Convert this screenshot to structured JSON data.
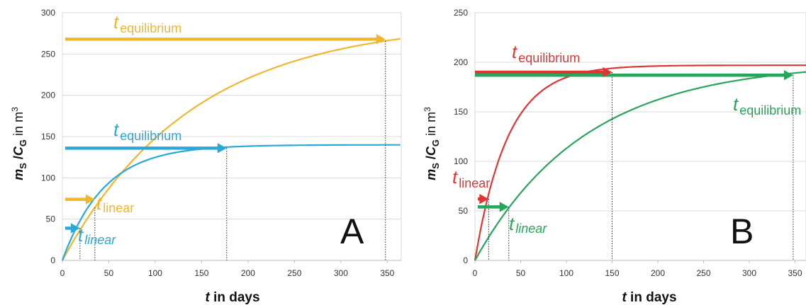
{
  "chart_data": [
    {
      "type": "line",
      "panel_label": "A",
      "xlabel": {
        "var": "t",
        "rest": " in days"
      },
      "ylabel": {
        "m": "m",
        "m_sub": "S",
        "slash": " /",
        "c": "C",
        "c_sub": "G",
        "rest": " in m",
        "sup": "3"
      },
      "xlim": [
        0,
        365
      ],
      "ylim": [
        0,
        300
      ],
      "x_ticks": [
        "0",
        "50",
        "100",
        "150",
        "200",
        "250",
        "300",
        "350"
      ],
      "y_ticks": [
        "0",
        "50",
        "100",
        "150",
        "200",
        "250",
        "300"
      ],
      "grid": "horizontal",
      "series": [
        {
          "color": "#f2b62c",
          "asymptote": 290,
          "tau": 140,
          "equilibrium_x": 348,
          "equilibrium_y": 268,
          "linear_x": 35,
          "linear_y": 74
        },
        {
          "color": "#2aa8d8",
          "asymptote": 140,
          "tau": 45,
          "equilibrium_x": 177,
          "equilibrium_y": 136,
          "linear_x": 19,
          "linear_y": 39
        }
      ],
      "annotations": [
        {
          "t": "t",
          "sub": "equilibrium",
          "color": "#f2b62c",
          "italic_sub": false
        },
        {
          "t": "t",
          "sub": "equilibrium",
          "color": "#2aa8d8",
          "italic_sub": false
        },
        {
          "t": "t",
          "sub": "linear",
          "color": "#f2b62c",
          "italic_sub": false
        },
        {
          "t": "t",
          "sub": "linear",
          "color": "#2aa8d8",
          "italic_sub": true
        }
      ]
    },
    {
      "type": "line",
      "panel_label": "B",
      "xlabel": {
        "var": "t",
        "rest": " in days"
      },
      "ylabel": {
        "m": "m",
        "m_sub": "S",
        "slash": " /",
        "c": "C",
        "c_sub": "G",
        "rest": " in m",
        "sup": "3"
      },
      "xlim": [
        0,
        362
      ],
      "ylim": [
        0,
        250
      ],
      "x_ticks": [
        "0",
        "50",
        "100",
        "150",
        "200",
        "250",
        "300",
        "350"
      ],
      "y_ticks": [
        "0",
        "50",
        "100",
        "150",
        "200",
        "250"
      ],
      "grid": "horizontal",
      "series": [
        {
          "color": "#e03535",
          "asymptote": 197,
          "tau": 36,
          "equilibrium_x": 150,
          "equilibrium_y": 190,
          "linear_x": 15,
          "linear_y": 62
        },
        {
          "color": "#27a55a",
          "asymptote": 200,
          "tau": 120,
          "equilibrium_x": 348,
          "equilibrium_y": 187,
          "linear_x": 37,
          "linear_y": 54
        }
      ],
      "annotations": [
        {
          "t": "t",
          "sub": "equilibrium",
          "color": "#e03535",
          "italic_sub": false
        },
        {
          "t": "t",
          "sub": "equilibrium",
          "color": "#27a55a",
          "italic_sub": false
        },
        {
          "t": "t",
          "sub": "linear",
          "color": "#e03535",
          "italic_sub": false
        },
        {
          "t": "t",
          "sub": "linear",
          "color": "#27a55a",
          "italic_sub": true
        }
      ]
    }
  ]
}
